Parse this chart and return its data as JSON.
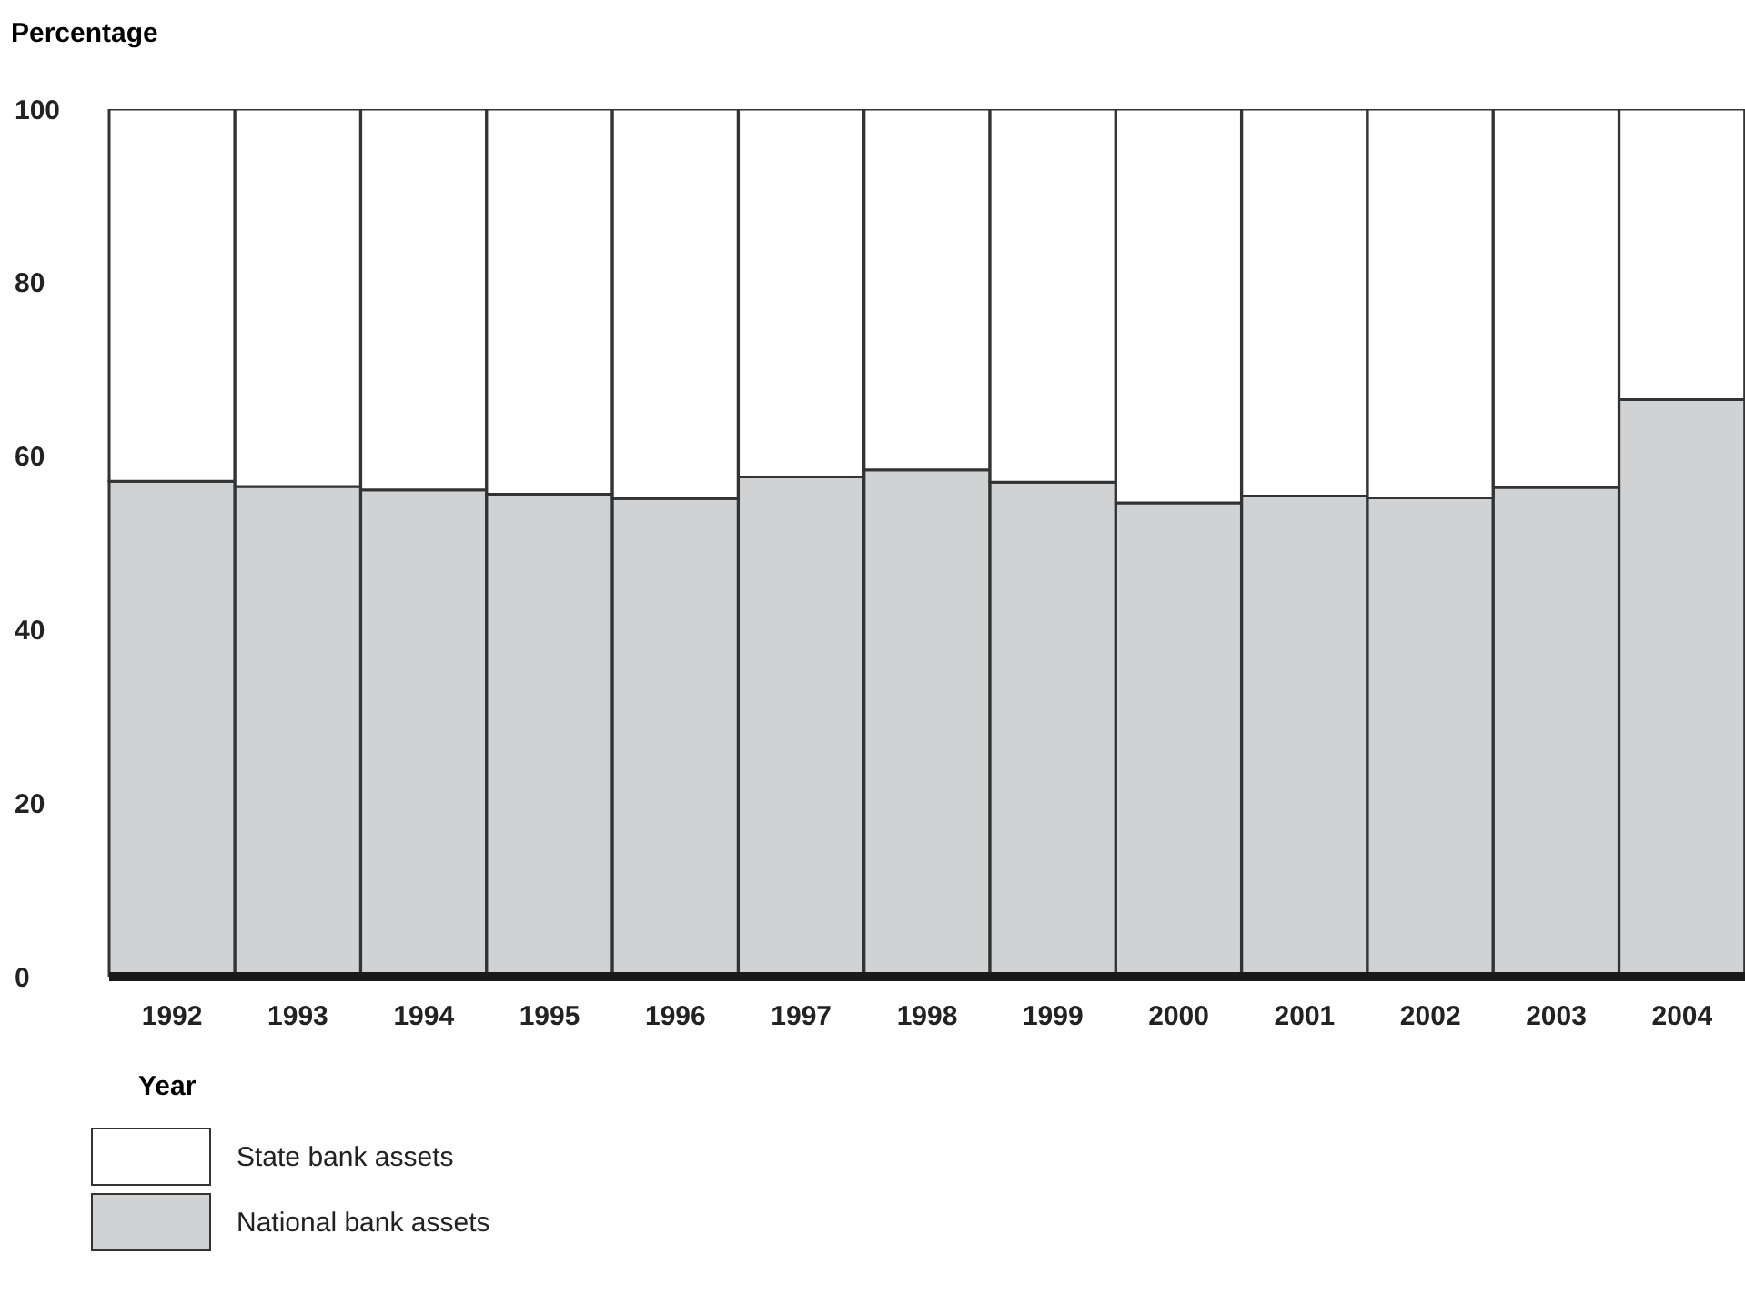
{
  "chart_data": {
    "type": "bar",
    "stacked": true,
    "ylabel": "Percentage",
    "xlabel": "Year",
    "categories": [
      "1992",
      "1993",
      "1994",
      "1995",
      "1996",
      "1997",
      "1998",
      "1999",
      "2000",
      "2001",
      "2002",
      "2003",
      "2004"
    ],
    "series": [
      {
        "name": "National bank assets",
        "color": "#d1d2d4",
        "values": [
          57.1,
          56.5,
          56.1,
          55.6,
          55.1,
          57.6,
          58.4,
          57.0,
          54.6,
          55.4,
          55.2,
          56.4,
          66.5
        ]
      },
      {
        "name": "State bank assets",
        "color": "#ffffff",
        "values": [
          42.9,
          43.5,
          43.9,
          44.4,
          44.9,
          42.4,
          41.6,
          43.0,
          45.4,
          44.6,
          44.8,
          43.6,
          33.5
        ]
      }
    ],
    "ylim": [
      0,
      100
    ],
    "yticks": [
      0,
      20,
      40,
      60,
      80,
      100
    ],
    "legend": "bottom left"
  }
}
